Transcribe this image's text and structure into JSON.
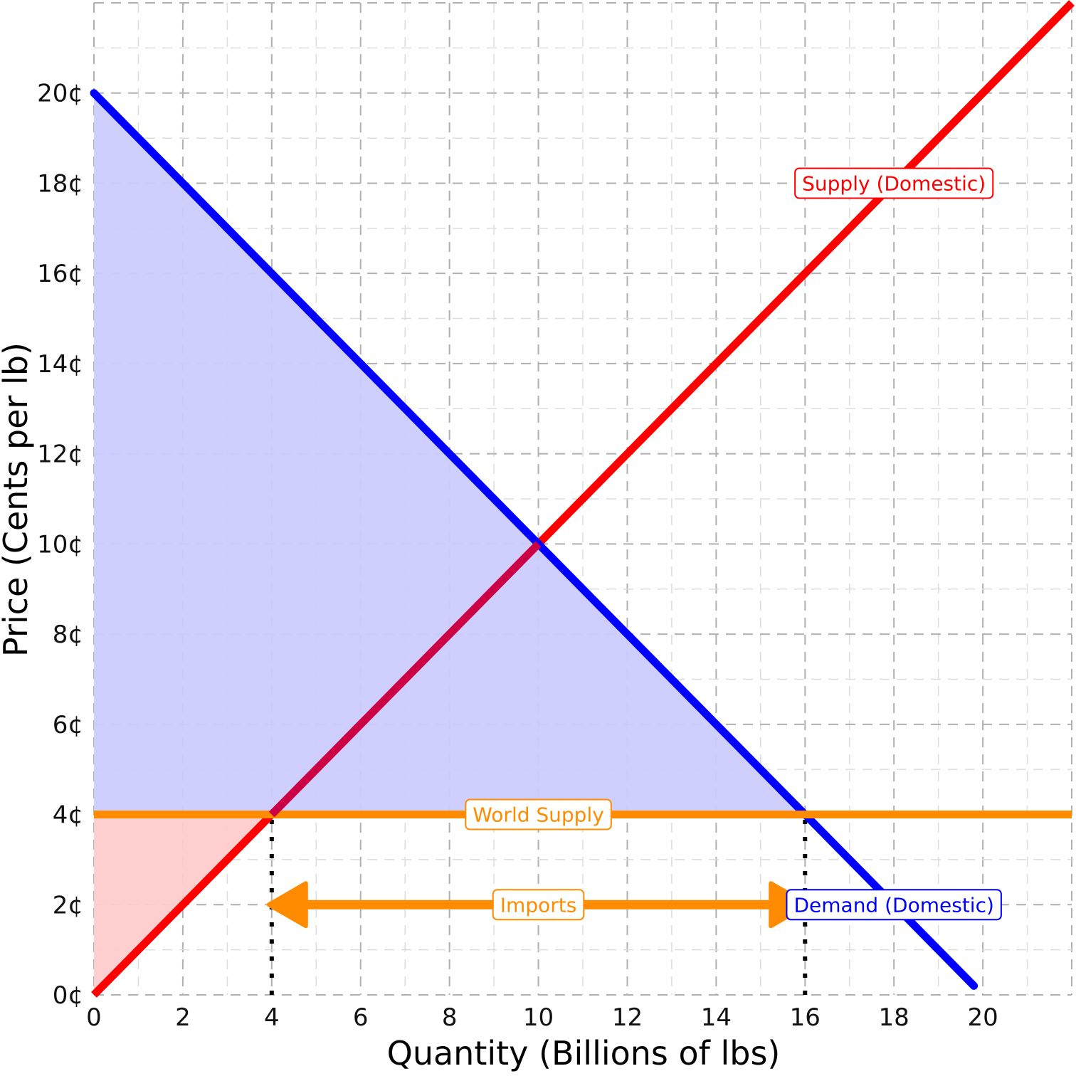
{
  "chart_data": {
    "type": "line",
    "xlabel": "Quantity (Billions of lbs)",
    "ylabel": "Price (Cents per lb)",
    "xlim": [
      0,
      22
    ],
    "ylim": [
      0,
      22
    ],
    "x_ticks": [
      0,
      2,
      4,
      6,
      8,
      10,
      12,
      14,
      16,
      18,
      20
    ],
    "x_tick_labels": [
      "0",
      "2",
      "4",
      "6",
      "8",
      "10",
      "12",
      "14",
      "16",
      "18",
      "20"
    ],
    "y_ticks": [
      0,
      2,
      4,
      6,
      8,
      10,
      12,
      14,
      16,
      18,
      20
    ],
    "y_tick_labels": [
      "0¢",
      "2¢",
      "4¢",
      "6¢",
      "8¢",
      "10¢",
      "12¢",
      "14¢",
      "16¢",
      "18¢",
      "20¢"
    ],
    "grid": true,
    "series": [
      {
        "name": "Supply (Domestic)",
        "color": "#ff0000",
        "x": [
          0,
          22
        ],
        "y": [
          0,
          22
        ]
      },
      {
        "name": "Demand (Domestic)",
        "color": "#0000ff",
        "x": [
          0,
          19.8
        ],
        "y": [
          20,
          0.2
        ]
      },
      {
        "name": "World Supply",
        "color": "#ff8c00",
        "x": [
          0,
          22
        ],
        "y": [
          4,
          4
        ]
      }
    ],
    "shaded_regions": [
      {
        "name": "consumer-surplus",
        "color": "#ccccff",
        "x": [
          0,
          0,
          16
        ],
        "y": [
          4,
          20,
          4
        ]
      },
      {
        "name": "producer-surplus",
        "color": "#ffcccc",
        "x": [
          0,
          0,
          4
        ],
        "y": [
          0,
          4,
          4
        ]
      }
    ],
    "reference_lines": [
      {
        "x": 4,
        "y_from": 0,
        "y_to": 4,
        "style": "dotted"
      },
      {
        "x": 16,
        "y_from": 0,
        "y_to": 4,
        "style": "dotted"
      }
    ],
    "arrow": {
      "label": "Imports",
      "color": "#ff8c00",
      "x_from": 4,
      "x_to": 16,
      "y": 2
    },
    "annotations": [
      {
        "text": "Supply (Domestic)",
        "x": 18,
        "y": 18,
        "color": "#ff0000"
      },
      {
        "text": "World Supply",
        "x": 10,
        "y": 4,
        "color": "#ff8c00"
      },
      {
        "text": "Imports",
        "x": 10,
        "y": 2,
        "color": "#ff8c00"
      },
      {
        "text": "Demand (Domestic)",
        "x": 18,
        "y": 2,
        "color": "#0000ff"
      }
    ]
  }
}
